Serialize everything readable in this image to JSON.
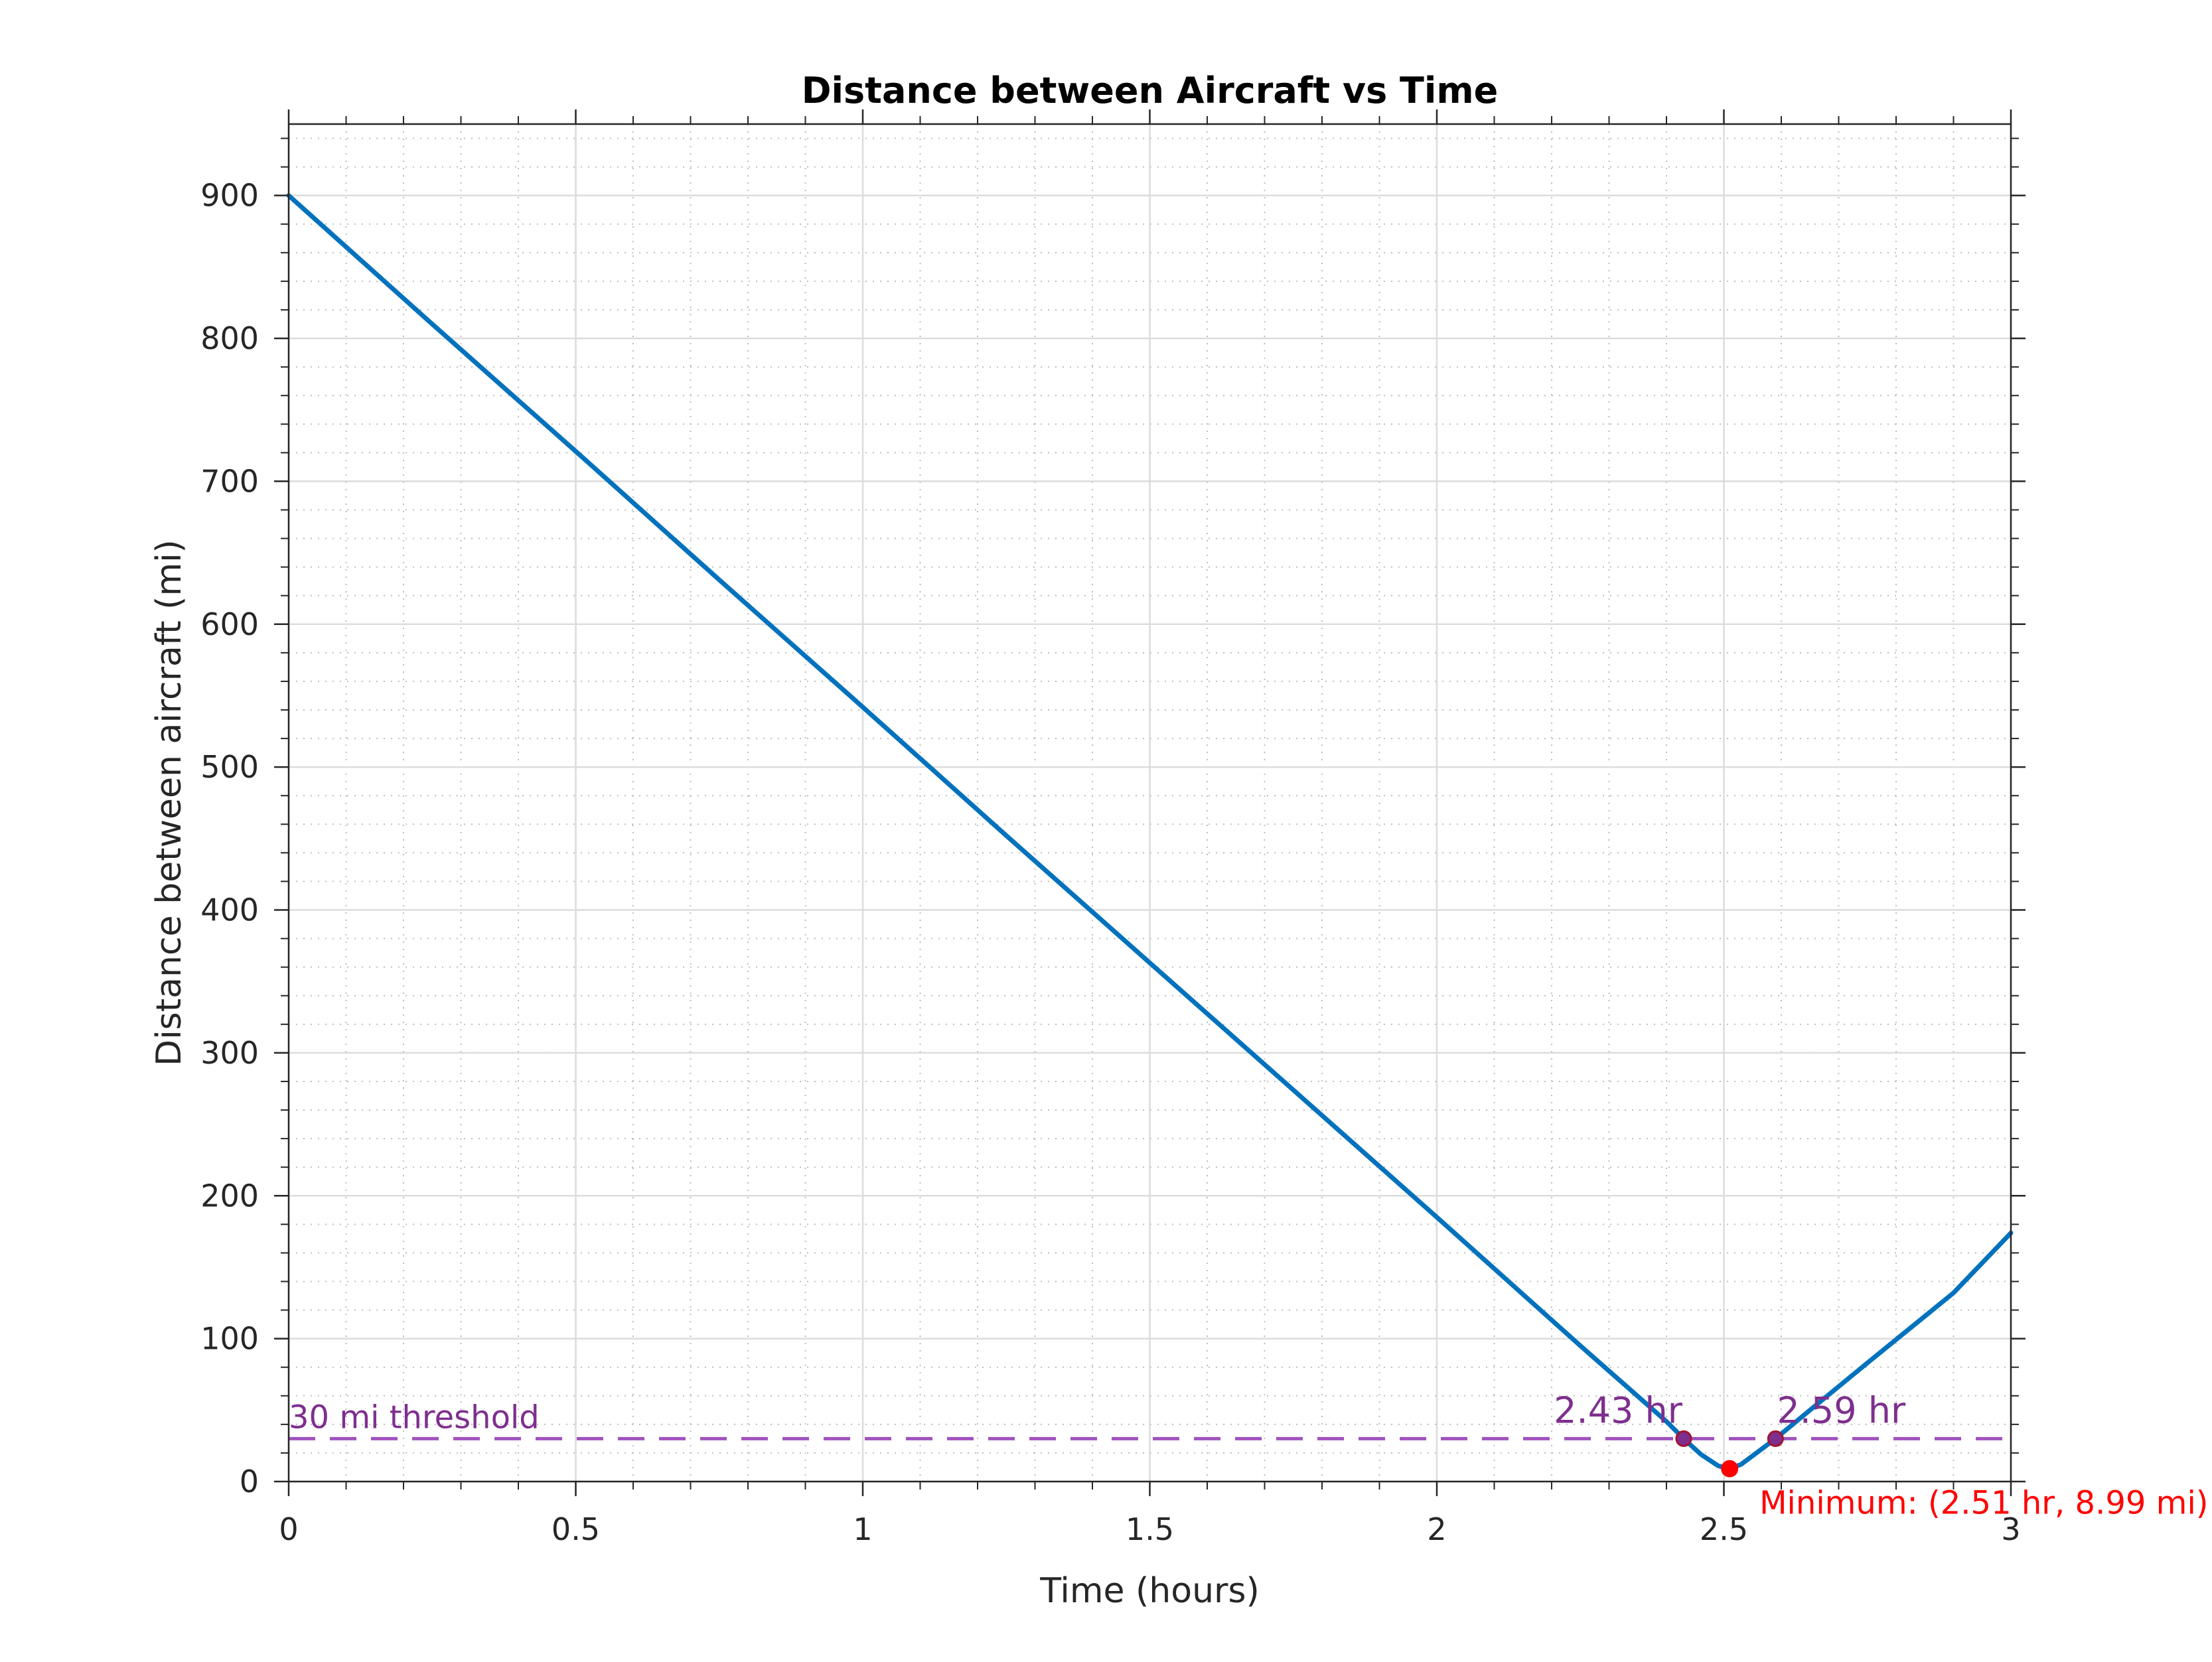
{
  "chart_data": {
    "type": "line",
    "title": "Distance between Aircraft vs Time",
    "xlabel": "Time (hours)",
    "ylabel": "Distance between aircraft (mi)",
    "xlim": [
      0,
      3
    ],
    "ylim": [
      0,
      950
    ],
    "xticks": [
      0,
      0.5,
      1,
      1.5,
      2,
      2.5,
      3
    ],
    "xtick_labels": [
      "0",
      "0.5",
      "1",
      "1.5",
      "2",
      "2.5",
      "3"
    ],
    "yticks": [
      0,
      100,
      200,
      300,
      400,
      500,
      600,
      700,
      800,
      900
    ],
    "ytick_labels": [
      "0",
      "100",
      "200",
      "300",
      "400",
      "500",
      "600",
      "700",
      "800",
      "900"
    ],
    "grid": true,
    "minor_grid": true,
    "series": [
      {
        "color": "#0072BD",
        "x": [
          0,
          0.25,
          0.5,
          0.75,
          1,
          1.25,
          1.5,
          1.75,
          2,
          2.25,
          2.4,
          2.43,
          2.46,
          2.49,
          2.51,
          2.53,
          2.56,
          2.59,
          2.65,
          2.75,
          2.9,
          3
        ],
        "y": [
          900,
          810,
          721,
          631,
          542,
          452,
          363,
          274,
          185,
          95,
          42,
          30,
          19,
          11,
          9,
          12,
          21,
          30,
          50,
          83,
          132,
          174
        ]
      }
    ],
    "threshold": {
      "y": 30,
      "label": "30 mi threshold",
      "color": "#A052BE"
    },
    "crossings": [
      {
        "x": 2.43,
        "y": 30,
        "label": "2.43 hr",
        "color": "#7E2F8E"
      },
      {
        "x": 2.59,
        "y": 30,
        "label": "2.59 hr",
        "color": "#7E2F8E"
      }
    ],
    "minimum": {
      "x": 2.51,
      "y": 8.99,
      "label": "Minimum: (2.51 hr, 8.99 mi)",
      "color": "#FF0000"
    }
  }
}
